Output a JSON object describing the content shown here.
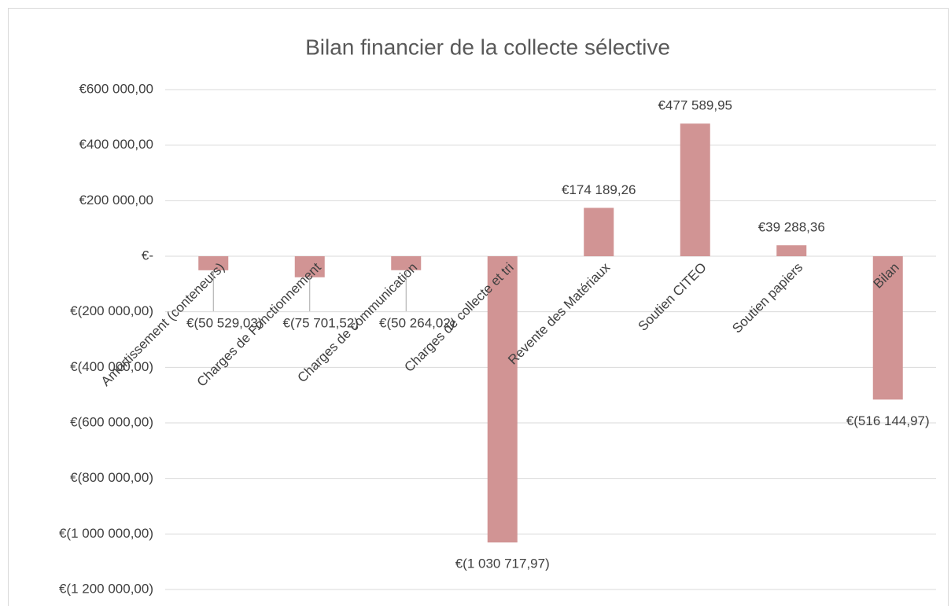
{
  "chart_data": {
    "type": "bar",
    "title": "Bilan financier de la collecte sélective",
    "categories": [
      "Amortissement (conteneurs)",
      "Charges de Fonctionnement",
      "Charges de communication",
      "Charges de collecte et tri",
      "Revente des Matériaux",
      "Soutien CITEO",
      "Soutien papiers",
      "Bilan"
    ],
    "values": [
      -50529.03,
      -75701.52,
      -50264.02,
      -1030717.97,
      174189.26,
      477589.95,
      39288.36,
      -516144.97
    ],
    "value_labels": [
      "€(50 529,03)",
      "€(75 701,52)",
      "€(50 264,02)",
      "€(1 030 717,97)",
      "€174 189,26",
      "€477 589,95",
      "€39 288,36",
      "€(516 144,97)"
    ],
    "color": "#d19494",
    "ylim": [
      -1200000,
      600000
    ],
    "yticks": [
      {
        "value": -1200000,
        "label": "€(1 200 000,00)"
      },
      {
        "value": -1000000,
        "label": "€(1 000 000,00)"
      },
      {
        "value": -800000,
        "label": "€(800 000,00)"
      },
      {
        "value": -600000,
        "label": "€(600 000,00)"
      },
      {
        "value": -400000,
        "label": "€(400 000,00)"
      },
      {
        "value": -200000,
        "label": "€(200 000,00)"
      },
      {
        "value": 0,
        "label": "€-"
      },
      {
        "value": 200000,
        "label": "€200 000,00"
      },
      {
        "value": 400000,
        "label": "€400 000,00"
      },
      {
        "value": 600000,
        "label": "€600 000,00"
      }
    ],
    "grid": true
  }
}
